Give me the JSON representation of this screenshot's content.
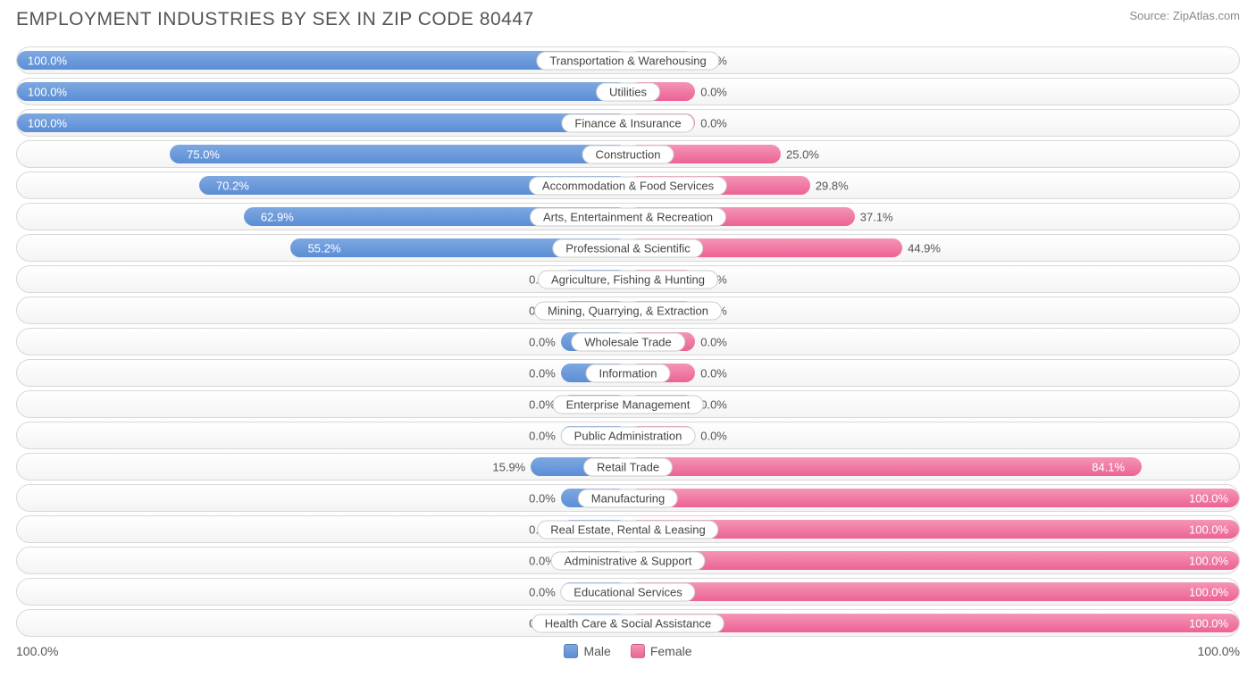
{
  "title": "EMPLOYMENT INDUSTRIES BY SEX IN ZIP CODE 80447",
  "source": "Source: ZipAtlas.com",
  "chart": {
    "type": "diverging-bar",
    "male_color_top": "#7ea8e0",
    "male_color_bot": "#5b8ed6",
    "female_color_top": "#f495b6",
    "female_color_bot": "#ec6296",
    "row_bg_top": "#ffffff",
    "row_bg_bot": "#f4f4f4",
    "border_color": "#d8d8d8",
    "label_fontsize": 13,
    "min_bar_pct": 11,
    "axis_left_label": "100.0%",
    "axis_right_label": "100.0%",
    "legend": [
      {
        "label": "Male",
        "color": "#5b8ed6"
      },
      {
        "label": "Female",
        "color": "#ec6296"
      }
    ],
    "rows": [
      {
        "label": "Transportation & Warehousing",
        "male": 100.0,
        "female": 0.0
      },
      {
        "label": "Utilities",
        "male": 100.0,
        "female": 0.0
      },
      {
        "label": "Finance & Insurance",
        "male": 100.0,
        "female": 0.0
      },
      {
        "label": "Construction",
        "male": 75.0,
        "female": 25.0
      },
      {
        "label": "Accommodation & Food Services",
        "male": 70.2,
        "female": 29.8
      },
      {
        "label": "Arts, Entertainment & Recreation",
        "male": 62.9,
        "female": 37.1
      },
      {
        "label": "Professional & Scientific",
        "male": 55.2,
        "female": 44.9
      },
      {
        "label": "Agriculture, Fishing & Hunting",
        "male": 0.0,
        "female": 0.0
      },
      {
        "label": "Mining, Quarrying, & Extraction",
        "male": 0.0,
        "female": 0.0
      },
      {
        "label": "Wholesale Trade",
        "male": 0.0,
        "female": 0.0
      },
      {
        "label": "Information",
        "male": 0.0,
        "female": 0.0
      },
      {
        "label": "Enterprise Management",
        "male": 0.0,
        "female": 0.0
      },
      {
        "label": "Public Administration",
        "male": 0.0,
        "female": 0.0
      },
      {
        "label": "Retail Trade",
        "male": 15.9,
        "female": 84.1
      },
      {
        "label": "Manufacturing",
        "male": 0.0,
        "female": 100.0
      },
      {
        "label": "Real Estate, Rental & Leasing",
        "male": 0.0,
        "female": 100.0
      },
      {
        "label": "Administrative & Support",
        "male": 0.0,
        "female": 100.0
      },
      {
        "label": "Educational Services",
        "male": 0.0,
        "female": 100.0
      },
      {
        "label": "Health Care & Social Assistance",
        "male": 0.0,
        "female": 100.0
      }
    ]
  }
}
